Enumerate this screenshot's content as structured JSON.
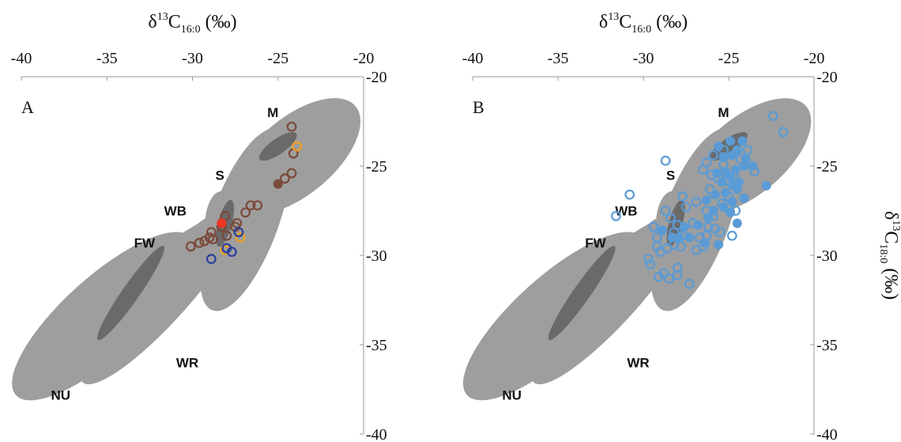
{
  "chart_data": [
    {
      "type": "scatter",
      "panel_label": "A",
      "xlabel": {
        "main": "δ",
        "sup": "13",
        "c": "C",
        "sub": "16:0",
        "unit": " (‰)"
      },
      "ylabel": {
        "main": "δ",
        "sup": "13",
        "c": "C",
        "sub": "18:0",
        "unit": " (‰)"
      },
      "xlim": [
        -40,
        -20
      ],
      "ylim": [
        -40,
        -20
      ],
      "x_ticks": [
        "-40",
        "-35",
        "-30",
        "-25",
        "-20"
      ],
      "y_ticks": [
        "-20",
        "-25",
        "-30",
        "-35",
        "-40"
      ],
      "x_axis_position": "top",
      "y_axis_position": "right",
      "grid": false,
      "colors": {
        "region": "#9e9e9e",
        "overlap": "#6a6a6a",
        "brown": "#7a4a3a",
        "orange": "#f0a020",
        "blue": "#2a3e9c",
        "red": "#ee3322",
        "light_blue": "#5b9bd5"
      },
      "regions": [
        {
          "label": "M",
          "cx": -23.95,
          "cy": -24.45,
          "rx": 2.25,
          "ry": 4.35,
          "rot": 50,
          "label_x": -25.3,
          "label_y": -22.0
        },
        {
          "label": "S",
          "cx": -26.9,
          "cy": -28.0,
          "rx": 1.95,
          "ry": 5.4,
          "rot": 20,
          "label_x": -28.4,
          "label_y": -25.5
        },
        {
          "label": "WB",
          "cx": -28.4,
          "cy": -28.0,
          "rx": 0.85,
          "ry": 1.6,
          "rot": 5,
          "label_x": -31.0,
          "label_y": -27.5
        },
        {
          "label": "FW",
          "cx": -29.7,
          "cy": -28.9,
          "rx": 0.6,
          "ry": 2.6,
          "rot": 60,
          "label_x": -32.8,
          "label_y": -29.3
        },
        {
          "label": "NU",
          "cx": -35.2,
          "cy": -33.4,
          "rx": 2.3,
          "ry": 6.6,
          "rot": 48,
          "label_x": -37.7,
          "label_y": -37.8
        },
        {
          "label": "WR",
          "cx": -31.8,
          "cy": -32.2,
          "rx": 1.6,
          "ry": 6.6,
          "rot": 42,
          "label_x": -30.3,
          "label_y": -36.0
        }
      ],
      "overlaps": [
        {
          "pair": "M-S",
          "cx": -25.0,
          "cy": -23.9,
          "rx": 0.45,
          "ry": 1.25,
          "rot": 55
        },
        {
          "pair": "WB-S",
          "cx": -28.1,
          "cy": -28.2,
          "rx": 0.4,
          "ry": 1.35,
          "rot": 15
        },
        {
          "pair": "NU-WR",
          "cx": -33.6,
          "cy": -32.1,
          "rx": 0.5,
          "ry": 3.2,
          "rot": 35
        }
      ],
      "series": [
        {
          "color": "brown",
          "filled": false,
          "points": [
            [
              -24.2,
              -22.8
            ],
            [
              -24.1,
              -24.3
            ],
            [
              -24.2,
              -25.4
            ],
            [
              -24.6,
              -25.7
            ],
            [
              -26.2,
              -27.2
            ],
            [
              -26.6,
              -27.2
            ],
            [
              -26.9,
              -27.6
            ],
            [
              -27.4,
              -28.2
            ],
            [
              -28.1,
              -27.8
            ],
            [
              -28.3,
              -28.4
            ],
            [
              -28.9,
              -28.7
            ],
            [
              -28.8,
              -29.1
            ],
            [
              -29.0,
              -29.0
            ],
            [
              -29.3,
              -29.2
            ],
            [
              -29.6,
              -29.3
            ],
            [
              -30.1,
              -29.5
            ],
            [
              -28.0,
              -28.9
            ],
            [
              -27.5,
              -28.4
            ]
          ]
        },
        {
          "color": "brown",
          "filled": true,
          "points": [
            [
              -25.0,
              -26.0
            ]
          ]
        },
        {
          "color": "orange",
          "filled": false,
          "points": [
            [
              -23.9,
              -23.9
            ],
            [
              -27.2,
              -29.0
            ],
            [
              -28.1,
              -29.7
            ]
          ]
        },
        {
          "color": "blue",
          "filled": false,
          "points": [
            [
              -27.3,
              -28.7
            ],
            [
              -28.0,
              -29.6
            ],
            [
              -27.7,
              -29.8
            ],
            [
              -28.9,
              -30.2
            ]
          ]
        },
        {
          "color": "red",
          "filled": true,
          "points": [
            [
              -28.3,
              -28.2
            ]
          ]
        }
      ]
    },
    {
      "type": "scatter",
      "panel_label": "B",
      "xlabel": {
        "main": "δ",
        "sup": "13",
        "c": "C",
        "sub": "16:0",
        "unit": " (‰)"
      },
      "ylabel": {
        "main": "δ",
        "sup": "13",
        "c": "C",
        "sub": "18:0",
        "unit": " (‰)"
      },
      "xlim": [
        -40,
        -20
      ],
      "ylim": [
        -40,
        -20
      ],
      "x_ticks": [
        "-40",
        "-35",
        "-30",
        "-25",
        "-20"
      ],
      "y_ticks": [
        "-20",
        "-25",
        "-30",
        "-35",
        "-40"
      ],
      "x_axis_position": "top",
      "y_axis_position": "right",
      "grid": false,
      "regions": [
        {
          "label": "M",
          "cx": -23.95,
          "cy": -24.45,
          "rx": 2.25,
          "ry": 4.35,
          "rot": 50,
          "label_x": -25.3,
          "label_y": -22.0
        },
        {
          "label": "S",
          "cx": -26.9,
          "cy": -28.0,
          "rx": 1.95,
          "ry": 5.4,
          "rot": 20,
          "label_x": -28.4,
          "label_y": -25.5
        },
        {
          "label": "WB",
          "cx": -28.4,
          "cy": -28.0,
          "rx": 0.85,
          "ry": 1.6,
          "rot": 5,
          "label_x": -31.0,
          "label_y": -27.5
        },
        {
          "label": "FW",
          "cx": -29.7,
          "cy": -28.9,
          "rx": 0.6,
          "ry": 2.6,
          "rot": 60,
          "label_x": -32.8,
          "label_y": -29.3
        },
        {
          "label": "NU",
          "cx": -35.2,
          "cy": -33.4,
          "rx": 2.3,
          "ry": 6.6,
          "rot": 48,
          "label_x": -37.7,
          "label_y": -37.8
        },
        {
          "label": "WR",
          "cx": -31.8,
          "cy": -32.2,
          "rx": 1.6,
          "ry": 6.6,
          "rot": 42,
          "label_x": -30.3,
          "label_y": -36.0
        }
      ],
      "overlaps": [
        {
          "pair": "M-S",
          "cx": -25.0,
          "cy": -23.9,
          "rx": 0.45,
          "ry": 1.25,
          "rot": 55
        },
        {
          "pair": "WB-S",
          "cx": -28.1,
          "cy": -28.2,
          "rx": 0.4,
          "ry": 1.35,
          "rot": 15
        },
        {
          "pair": "NU-WR",
          "cx": -33.6,
          "cy": -32.1,
          "rx": 0.5,
          "ry": 3.2,
          "rot": 35
        }
      ],
      "series": [
        {
          "color": "light_blue",
          "filled": false,
          "points": [
            [
              -22.4,
              -22.2
            ],
            [
              -21.8,
              -23.1
            ],
            [
              -28.7,
              -24.7
            ],
            [
              -30.8,
              -26.6
            ],
            [
              -31.6,
              -27.8
            ],
            [
              -29.6,
              -30.5
            ],
            [
              -29.7,
              -30.2
            ],
            [
              -29.1,
              -31.2
            ],
            [
              -28.8,
              -31.0
            ],
            [
              -28.5,
              -31.3
            ],
            [
              -28.0,
              -30.7
            ],
            [
              -28.0,
              -31.1
            ],
            [
              -27.3,
              -31.6
            ],
            [
              -29.2,
              -29.5
            ],
            [
              -29.0,
              -29.8
            ],
            [
              -28.6,
              -29.6
            ],
            [
              -28.2,
              -29.4
            ],
            [
              -28.7,
              -27.5
            ],
            [
              -28.4,
              -27.9
            ],
            [
              -28.2,
              -28.7
            ],
            [
              -28.0,
              -28.3
            ],
            [
              -27.7,
              -28.9
            ],
            [
              -27.8,
              -29.5
            ],
            [
              -27.1,
              -28.2
            ],
            [
              -26.9,
              -29.7
            ],
            [
              -26.7,
              -29.0
            ],
            [
              -26.5,
              -29.5
            ],
            [
              -26.3,
              -28.9
            ],
            [
              -26.2,
              -28.4
            ],
            [
              -25.8,
              -28.5
            ],
            [
              -25.5,
              -28.7
            ],
            [
              -24.8,
              -28.9
            ],
            [
              -25.9,
              -27.8
            ],
            [
              -26.3,
              -27.5
            ],
            [
              -26.1,
              -26.3
            ],
            [
              -26.0,
              -25.5
            ],
            [
              -25.6,
              -25.7
            ],
            [
              -25.3,
              -24.9
            ],
            [
              -25.1,
              -25.8
            ],
            [
              -24.7,
              -25.6
            ],
            [
              -24.3,
              -24.6
            ],
            [
              -23.9,
              -24.1
            ],
            [
              -23.5,
              -25.3
            ],
            [
              -25.3,
              -24.1
            ],
            [
              -25.9,
              -24.4
            ],
            [
              -26.3,
              -24.8
            ],
            [
              -26.5,
              -25.2
            ],
            [
              -27.5,
              -27.3
            ],
            [
              -27.7,
              -26.7
            ],
            [
              -26.9,
              -27.0
            ],
            [
              -25.0,
              -26.7
            ],
            [
              -25.4,
              -27.1
            ],
            [
              -24.6,
              -27.5
            ],
            [
              -29.2,
              -29.0
            ],
            [
              -29.4,
              -28.4
            ],
            [
              -28.9,
              -28.6
            ]
          ]
        },
        {
          "color": "light_blue",
          "filled": true,
          "points": [
            [
              -24.2,
              -23.6
            ],
            [
              -24.9,
              -23.6
            ],
            [
              -25.6,
              -23.9
            ],
            [
              -24.5,
              -24.1
            ],
            [
              -24.0,
              -24.6
            ],
            [
              -24.8,
              -24.4
            ],
            [
              -25.3,
              -24.5
            ],
            [
              -23.6,
              -25.0
            ],
            [
              -24.1,
              -25.0
            ],
            [
              -24.6,
              -25.2
            ],
            [
              -25.2,
              -25.3
            ],
            [
              -24.9,
              -25.6
            ],
            [
              -24.4,
              -25.9
            ],
            [
              -25.7,
              -25.4
            ],
            [
              -25.4,
              -25.9
            ],
            [
              -24.8,
              -26.1
            ],
            [
              -24.5,
              -26.3
            ],
            [
              -25.2,
              -26.5
            ],
            [
              -25.8,
              -26.6
            ],
            [
              -26.3,
              -26.9
            ],
            [
              -22.8,
              -26.1
            ],
            [
              -24.8,
              -27.0
            ],
            [
              -25.3,
              -27.3
            ],
            [
              -24.9,
              -27.6
            ],
            [
              -25.9,
              -27.5
            ],
            [
              -26.2,
              -27.9
            ],
            [
              -26.8,
              -28.3
            ],
            [
              -27.6,
              -28.4
            ],
            [
              -27.9,
              -29.0
            ],
            [
              -27.3,
              -29.0
            ],
            [
              -28.3,
              -29.0
            ],
            [
              -28.9,
              -28.6
            ],
            [
              -26.4,
              -29.3
            ],
            [
              -25.6,
              -29.4
            ],
            [
              -24.5,
              -28.2
            ],
            [
              -24.1,
              -26.8
            ]
          ]
        }
      ]
    }
  ]
}
